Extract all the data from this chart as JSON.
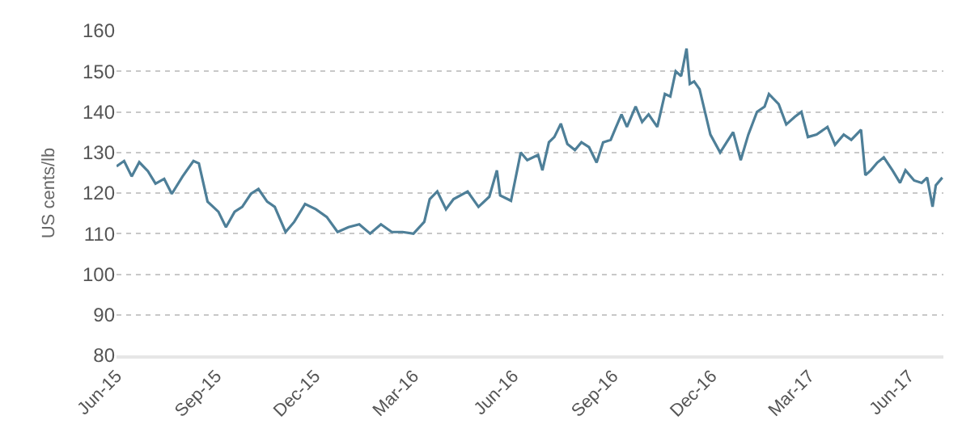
{
  "chart_data": {
    "type": "line",
    "ylabel": "US cents/lb",
    "grid": "y",
    "line_style": "solid",
    "marker": "none",
    "xlim": [
      "2015-06-01",
      "2017-07-03"
    ],
    "xticks": [
      {
        "value": "2015-06-01",
        "label": "Jun-15"
      },
      {
        "value": "2015-09-01",
        "label": "Sep-15"
      },
      {
        "value": "2015-12-01",
        "label": "Dec-15"
      },
      {
        "value": "2016-03-01",
        "label": "Mar-16"
      },
      {
        "value": "2016-06-01",
        "label": "Jun-16"
      },
      {
        "value": "2016-09-01",
        "label": "Sep-16"
      },
      {
        "value": "2016-12-01",
        "label": "Dec-16"
      },
      {
        "value": "2017-03-01",
        "label": "Mar-17"
      },
      {
        "value": "2017-06-01",
        "label": "Jun-17"
      }
    ],
    "ylim": [
      80,
      160
    ],
    "yticks": [
      80,
      90,
      100,
      110,
      120,
      130,
      140,
      150,
      160
    ],
    "series": [
      {
        "color": "#4e7f98",
        "x": [
          "2015-06-01",
          "2015-06-08",
          "2015-06-15",
          "2015-06-22",
          "2015-06-30",
          "2015-07-07",
          "2015-07-15",
          "2015-07-22",
          "2015-08-01",
          "2015-08-11",
          "2015-08-16",
          "2015-08-24",
          "2015-09-03",
          "2015-09-10",
          "2015-09-18",
          "2015-09-25",
          "2015-10-03",
          "2015-10-10",
          "2015-10-18",
          "2015-10-25",
          "2015-11-04",
          "2015-11-12",
          "2015-11-22",
          "2015-12-02",
          "2015-12-12",
          "2015-12-22",
          "2016-01-01",
          "2016-01-11",
          "2016-01-21",
          "2016-01-31",
          "2016-02-10",
          "2016-02-20",
          "2016-03-01",
          "2016-03-11",
          "2016-03-16",
          "2016-03-23",
          "2016-03-31",
          "2016-04-07",
          "2016-04-20",
          "2016-04-30",
          "2016-05-10",
          "2016-05-17",
          "2016-05-20",
          "2016-05-30",
          "2016-06-08",
          "2016-06-14",
          "2016-06-24",
          "2016-06-28",
          "2016-07-04",
          "2016-07-09",
          "2016-07-15",
          "2016-07-21",
          "2016-07-28",
          "2016-08-03",
          "2016-08-10",
          "2016-08-17",
          "2016-08-23",
          "2016-08-30",
          "2016-09-04",
          "2016-09-09",
          "2016-09-14",
          "2016-09-22",
          "2016-09-28",
          "2016-10-04",
          "2016-10-12",
          "2016-10-19",
          "2016-10-24",
          "2016-10-29",
          "2016-11-03",
          "2016-11-08",
          "2016-11-11",
          "2016-11-15",
          "2016-11-20",
          "2016-11-25",
          "2016-11-30",
          "2016-12-09",
          "2016-12-15",
          "2016-12-21",
          "2016-12-28",
          "2017-01-04",
          "2017-01-12",
          "2017-01-19",
          "2017-01-23",
          "2017-02-01",
          "2017-02-08",
          "2017-02-16",
          "2017-02-22",
          "2017-02-28",
          "2017-03-08",
          "2017-03-18",
          "2017-03-25",
          "2017-04-02",
          "2017-04-09",
          "2017-04-18",
          "2017-04-22",
          "2017-04-27",
          "2017-05-03",
          "2017-05-09",
          "2017-05-17",
          "2017-05-24",
          "2017-05-29",
          "2017-06-06",
          "2017-06-13",
          "2017-06-18",
          "2017-06-23",
          "2017-06-26",
          "2017-07-02"
        ],
        "values": [
          126.6,
          127.9,
          124.1,
          127.6,
          125.4,
          122.3,
          123.5,
          119.8,
          124.1,
          127.9,
          127.3,
          117.9,
          115.4,
          111.6,
          115.4,
          116.6,
          119.8,
          121,
          117.9,
          116.6,
          110.4,
          112.9,
          117.3,
          116,
          114.1,
          110.4,
          111.6,
          112.3,
          110,
          112.3,
          110.4,
          110.4,
          110,
          112.9,
          118.5,
          120.4,
          116,
          118.5,
          120.4,
          116.6,
          119.1,
          125.6,
          119.4,
          118.1,
          130,
          128.1,
          129.4,
          125.6,
          132.5,
          133.8,
          137.1,
          132.1,
          130.6,
          132.5,
          131.3,
          127.5,
          132.5,
          133.1,
          136.3,
          139.4,
          136.3,
          141.3,
          137.5,
          139.4,
          136.3,
          144.4,
          143.8,
          150,
          148.8,
          155.6,
          146.9,
          147.5,
          145.6,
          140,
          134.4,
          130,
          132.5,
          135,
          128.1,
          134.4,
          140,
          141.3,
          144.4,
          141.9,
          136.9,
          138.8,
          140,
          133.8,
          134.4,
          136.3,
          131.9,
          134.4,
          133.1,
          135.6,
          124.4,
          125.6,
          127.5,
          128.8,
          125.6,
          122.5,
          125.6,
          123.1,
          122.5,
          123.8,
          116.6,
          121.9,
          123.8
        ]
      }
    ]
  }
}
